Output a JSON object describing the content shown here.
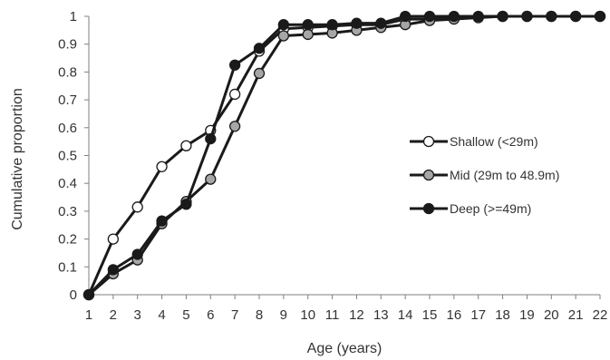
{
  "chart_data": {
    "type": "line",
    "title": "",
    "xlabel": "Age (years)",
    "ylabel": "Cumulative proportion",
    "x": [
      1,
      2,
      3,
      4,
      5,
      6,
      7,
      8,
      9,
      10,
      11,
      12,
      13,
      14,
      15,
      16,
      17,
      18,
      19,
      20,
      21,
      22
    ],
    "x_ticks": [
      "1",
      "2",
      "3",
      "4",
      "5",
      "6",
      "7",
      "8",
      "9",
      "10",
      "11",
      "12",
      "13",
      "14",
      "15",
      "16",
      "17",
      "18",
      "19",
      "20",
      "21",
      "22"
    ],
    "y_ticks": [
      "0",
      "0.1",
      "0.2",
      "0.3",
      "0.4",
      "0.5",
      "0.6",
      "0.7",
      "0.8",
      "0.9",
      "1"
    ],
    "ylim": [
      0,
      1
    ],
    "grid": false,
    "legend_position": "right",
    "series": [
      {
        "name": "Shallow (<29m)",
        "marker_fill": "#ffffff",
        "line_color": "#1a1a1a",
        "values": [
          0,
          0.2,
          0.315,
          0.46,
          0.535,
          0.59,
          0.72,
          0.875,
          0.955,
          0.96,
          0.965,
          0.97,
          0.97,
          0.99,
          0.99,
          0.995,
          0.998,
          1,
          1,
          1,
          1,
          1
        ]
      },
      {
        "name": "Mid (29m to 48.9m)",
        "marker_fill": "#a6a6a6",
        "line_color": "#1a1a1a",
        "values": [
          0,
          0.075,
          0.125,
          0.255,
          0.335,
          0.415,
          0.605,
          0.795,
          0.93,
          0.935,
          0.94,
          0.95,
          0.96,
          0.97,
          0.985,
          0.99,
          0.995,
          1,
          1,
          1,
          1,
          1
        ]
      },
      {
        "name": "Deep (>=49m)",
        "marker_fill": "#1a1a1a",
        "line_color": "#1a1a1a",
        "values": [
          0,
          0.09,
          0.145,
          0.265,
          0.325,
          0.56,
          0.825,
          0.885,
          0.97,
          0.97,
          0.97,
          0.975,
          0.975,
          1,
          1,
          1,
          1,
          1,
          1,
          1,
          1,
          1
        ]
      }
    ]
  }
}
